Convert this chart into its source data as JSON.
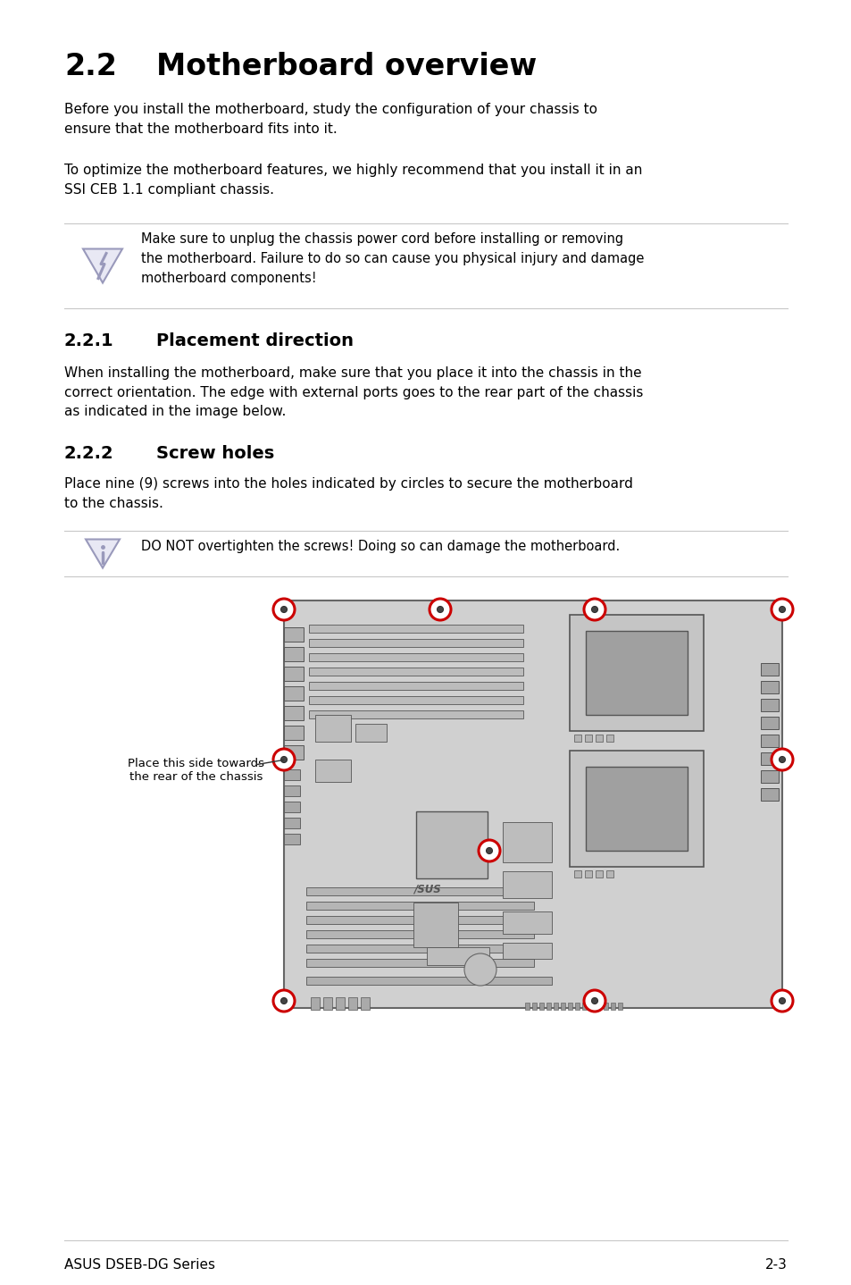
{
  "title_num": "2.2",
  "title_text": "Motherboard overview",
  "body1": "Before you install the motherboard, study the configuration of your chassis to\nensure that the motherboard fits into it.",
  "body2": "To optimize the motherboard features, we highly recommend that you install it in an\nSSI CEB 1.1 compliant chassis.",
  "warning1": "Make sure to unplug the chassis power cord before installing or removing\nthe motherboard. Failure to do so can cause you physical injury and damage\nmotherboard components!",
  "section221_num": "2.2.1",
  "section221_text": "Placement direction",
  "body221": "When installing the motherboard, make sure that you place it into the chassis in the\ncorrect orientation. The edge with external ports goes to the rear part of the chassis\nas indicated in the image below.",
  "section222_num": "2.2.2",
  "section222_text": "Screw holes",
  "body222": "Place nine (9) screws into the holes indicated by circles to secure the motherboard\nto the chassis.",
  "warning2": "DO NOT overtighten the screws! Doing so can damage the motherboard.",
  "annotation": "Place this side towards\nthe rear of the chassis",
  "footer_left": "ASUS DSEB-DG Series",
  "footer_right": "2-3",
  "bg_color": "#ffffff",
  "text_color": "#000000",
  "line_color": "#c8c8c8",
  "board_color": "#d0d0d0",
  "board_edge_color": "#666666",
  "screw_color": "#cc0000",
  "warn_icon_color": "#9999bb",
  "component_color": "#b8b8b8",
  "component_edge": "#555555",
  "slot_color": "#c0c0c0",
  "dark_slot_color": "#a0a0a0"
}
